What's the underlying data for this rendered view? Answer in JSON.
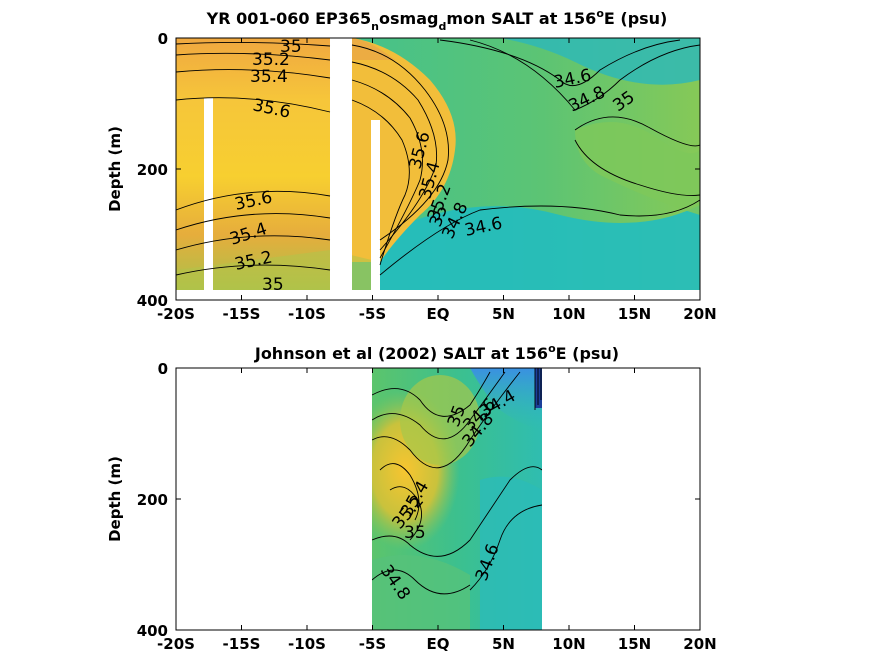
{
  "chart_data": [
    {
      "type": "heatmap",
      "title_main": "YR 001-060 EP365",
      "title_sub1": "n",
      "title_mid": "osmag",
      "title_sub2": "d",
      "title_tail": "mon SALT at 156",
      "title_sup": "o",
      "title_end": "E (psu)",
      "ylabel": "Depth (m)",
      "xlim": [
        -20,
        20
      ],
      "ylim": [
        400,
        0
      ],
      "xticks": [
        -20,
        -15,
        -10,
        -5,
        0,
        5,
        10,
        15,
        20
      ],
      "xticklabels": [
        "-20S",
        "-15S",
        "-10S",
        "-5S",
        "EQ",
        "5N",
        "10N",
        "15N",
        "20N"
      ],
      "yticks": [
        0,
        200,
        400
      ],
      "yticklabels": [
        "0",
        "200",
        "400"
      ],
      "data_extent": {
        "lat": [
          -20,
          20
        ],
        "depth": [
          0,
          385
        ]
      },
      "masked_bands": [
        {
          "lat": [
            -17.8,
            -17.1
          ],
          "depth": [
            90,
            385
          ]
        },
        {
          "lat": [
            -7.8,
            -6.0
          ],
          "depth": [
            0,
            385
          ]
        },
        {
          "lat": [
            -5.2,
            -4.5
          ],
          "depth": [
            120,
            385
          ]
        }
      ],
      "contour_labels": [
        "35",
        "35.2",
        "35.4",
        "35.6",
        "35.6",
        "35.4",
        "35.2",
        "35",
        "35.6",
        "35.4",
        "35.2",
        "35",
        "34.8",
        "34.6",
        "34.6",
        "34.8",
        "35"
      ]
    },
    {
      "type": "heatmap",
      "title_main": "Johnson et al (2002) SALT at 156",
      "title_sup": "o",
      "title_end": "E (psu)",
      "ylabel": "Depth (m)",
      "xlim": [
        -20,
        20
      ],
      "ylim": [
        400,
        0
      ],
      "xticks": [
        -20,
        -15,
        -10,
        -5,
        0,
        5,
        10,
        15,
        20
      ],
      "xticklabels": [
        "-20S",
        "-15S",
        "-10S",
        "-5S",
        "EQ",
        "5N",
        "10N",
        "15N",
        "20N"
      ],
      "yticks": [
        0,
        200,
        400
      ],
      "yticklabels": [
        "0",
        "200",
        "400"
      ],
      "data_extent": {
        "lat": [
          -5,
          8
        ],
        "depth": [
          0,
          400
        ]
      },
      "contour_labels": [
        "35",
        "34.4",
        "34.6",
        "34.8",
        "35.4",
        "35.2",
        "35",
        "34.6",
        "34.8"
      ]
    }
  ],
  "colors": {
    "high_salinity": "#f5c733",
    "mid_high": "#e8b040",
    "mid": "#6cc46a",
    "low": "#2fbfb0",
    "very_low": "#3a8fe0",
    "minimum": "#1b3f9a"
  }
}
